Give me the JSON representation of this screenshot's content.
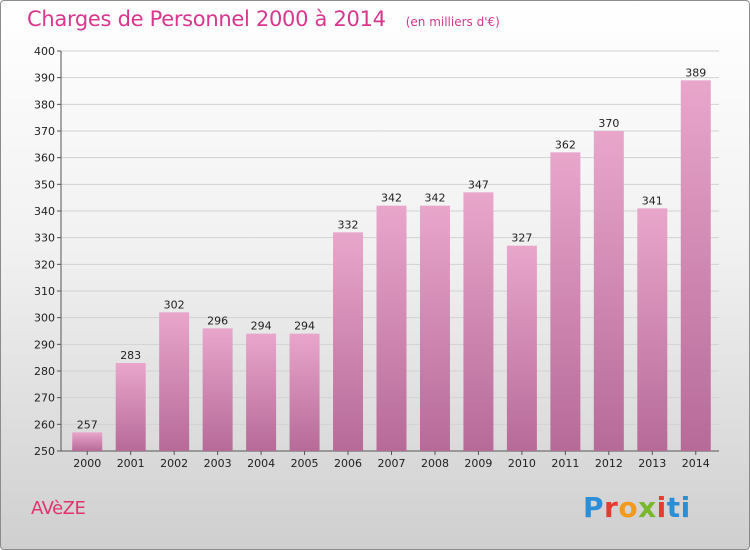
{
  "header": {
    "title": "Charges de Personnel 2000 à 2014",
    "subtitle": "(en milliers d'€)"
  },
  "footer": {
    "commune": "AVèZE",
    "logo_text": "Proxiti"
  },
  "colors": {
    "bar_top": "#e9a6cb",
    "bar_bottom": "#b66a98",
    "title": "#d9368e",
    "commune": "#e2336d"
  },
  "chart_data": {
    "type": "bar",
    "title": "Charges de Personnel 2000 à 2014",
    "subtitle": "(en milliers d'€)",
    "categories": [
      "2000",
      "2001",
      "2002",
      "2003",
      "2004",
      "2005",
      "2006",
      "2007",
      "2008",
      "2009",
      "2010",
      "2011",
      "2012",
      "2013",
      "2014"
    ],
    "values": [
      257,
      283,
      302,
      296,
      294,
      294,
      332,
      342,
      342,
      347,
      327,
      362,
      370,
      341,
      389
    ],
    "ylim": [
      250,
      400
    ],
    "yticks": [
      250,
      260,
      270,
      280,
      290,
      300,
      310,
      320,
      330,
      340,
      350,
      360,
      370,
      380,
      390,
      400
    ],
    "grid": true,
    "legend": "none"
  }
}
